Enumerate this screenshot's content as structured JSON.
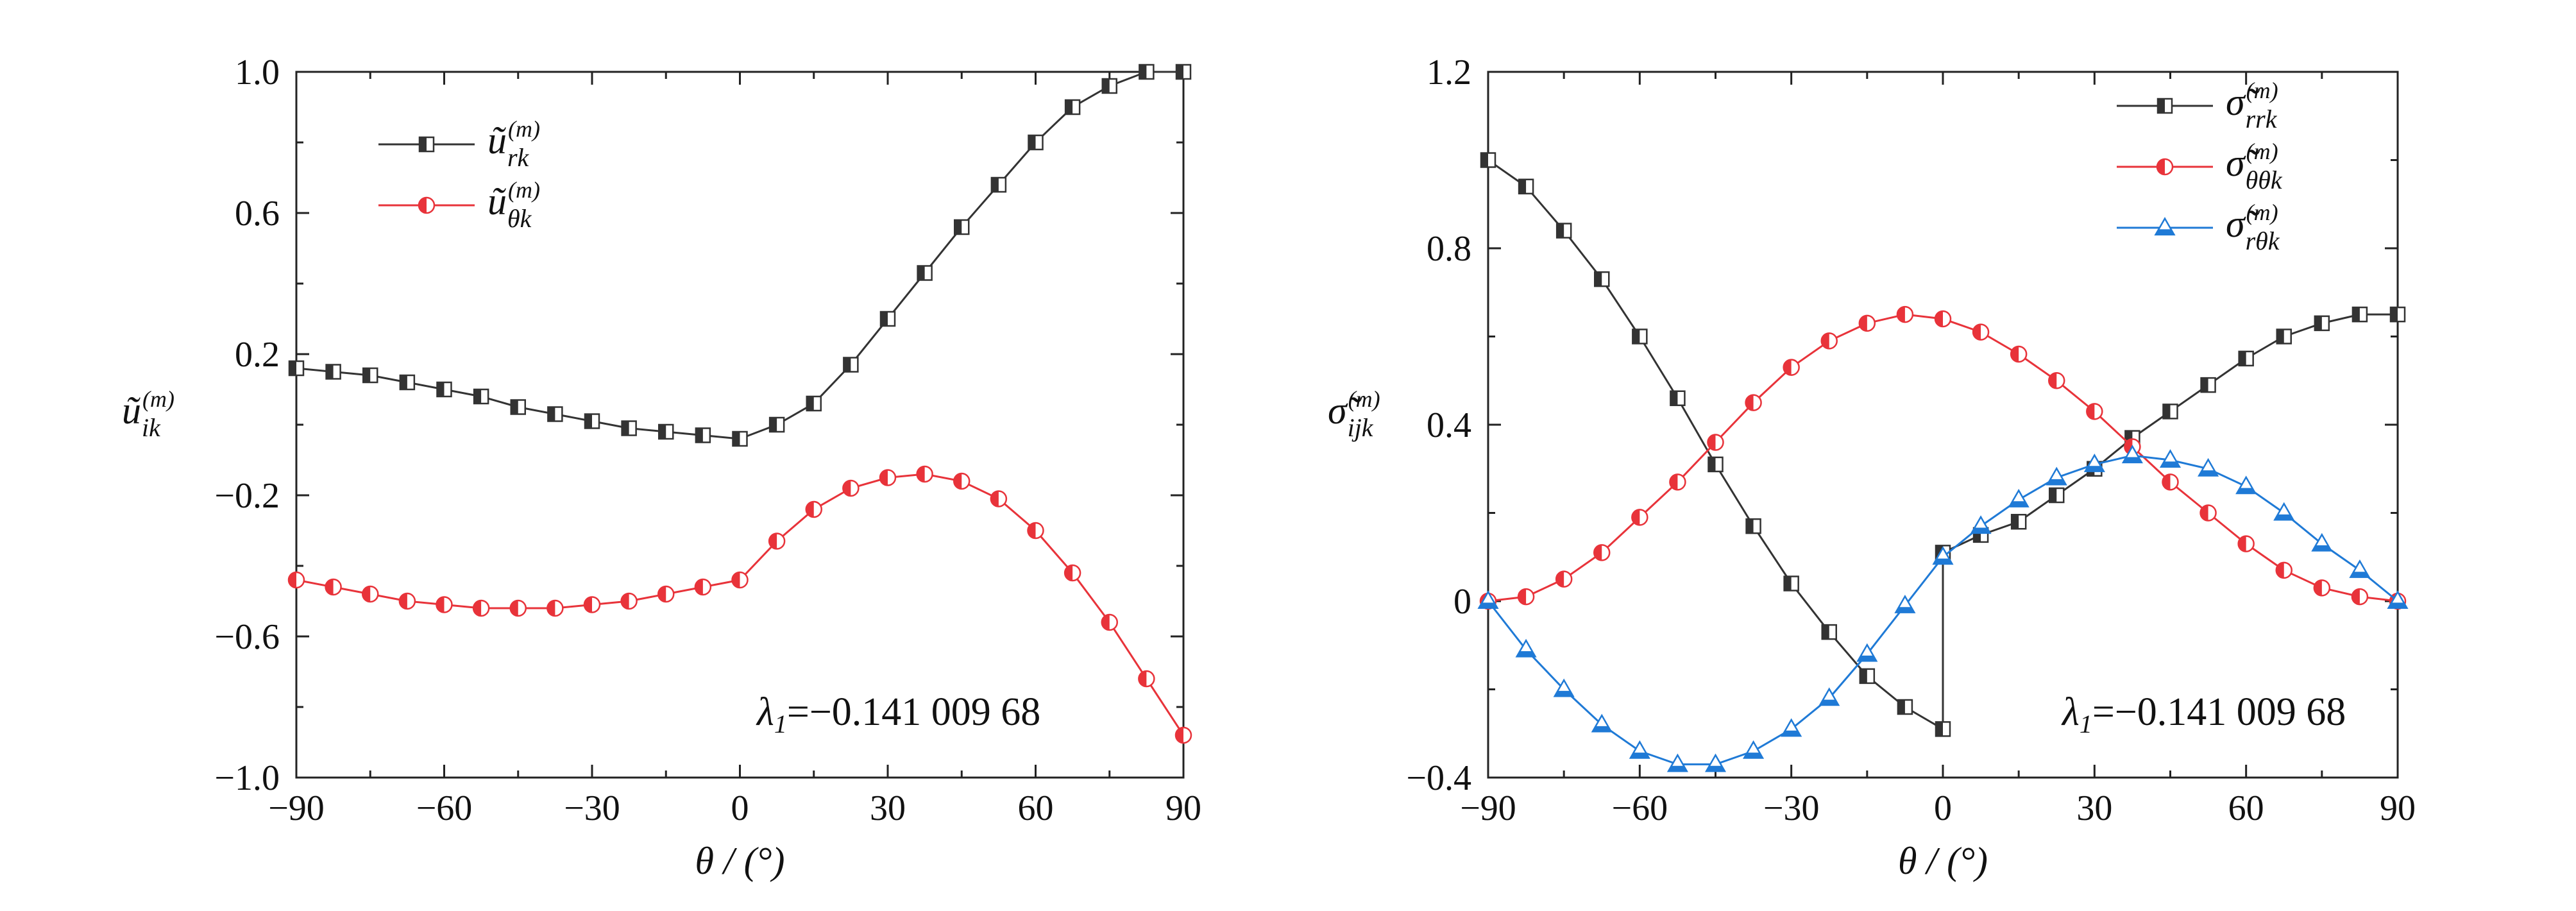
{
  "chart_data": [
    {
      "type": "line",
      "xlabel": "θ / (°)",
      "ylabel": "ũ_ik^(m)",
      "ylabel_parts": {
        "base": "ũ",
        "sub": "ik",
        "sup": "(m)"
      },
      "xlim": [
        -90,
        90
      ],
      "ylim": [
        -1.0,
        1.0
      ],
      "xticks": [
        -90,
        -60,
        -30,
        0,
        30,
        60,
        90
      ],
      "yticks": [
        -1.0,
        -0.6,
        -0.2,
        0.2,
        0.6,
        1.0
      ],
      "xtick_labels": [
        "−90",
        "−60",
        "−30",
        "0",
        "30",
        "60",
        "90"
      ],
      "ytick_labels": [
        "−1.0",
        "−0.6",
        "−0.2",
        "0.2",
        "0.6",
        "1.0"
      ],
      "annotation": "λ1=−0.141 009 68",
      "annotation_parts": {
        "lambda": "λ",
        "sub": "1",
        "rest": "=−0.141 009 68"
      },
      "legend_position": "top-left",
      "series": [
        {
          "name": "ũ_rk^(m)",
          "name_parts": {
            "base": "ũ",
            "sub": "rk",
            "sup": "(m)"
          },
          "color": "#333333",
          "marker": "square-half",
          "x": [
            -90,
            -82.5,
            -75,
            -67.5,
            -60,
            -52.5,
            -45,
            -37.5,
            -30,
            -22.5,
            -15,
            -7.5,
            0,
            7.5,
            15,
            22.5,
            30,
            37.5,
            45,
            52.5,
            60,
            67.5,
            75,
            82.5,
            90
          ],
          "values": [
            0.16,
            0.15,
            0.14,
            0.12,
            0.1,
            0.08,
            0.05,
            0.03,
            0.01,
            -0.01,
            -0.02,
            -0.03,
            -0.04,
            0.0,
            0.06,
            0.17,
            0.3,
            0.43,
            0.56,
            0.68,
            0.8,
            0.9,
            0.96,
            1.0,
            1.0
          ]
        },
        {
          "name": "ũ_θk^(m)",
          "name_parts": {
            "base": "ũ",
            "sub": "θk",
            "sup": "(m)"
          },
          "color": "#e8333a",
          "marker": "circle-half",
          "x": [
            -90,
            -82.5,
            -75,
            -67.5,
            -60,
            -52.5,
            -45,
            -37.5,
            -30,
            -22.5,
            -15,
            -7.5,
            0,
            7.5,
            15,
            22.5,
            30,
            37.5,
            45,
            52.5,
            60,
            67.5,
            75,
            82.5,
            90
          ],
          "values": [
            -0.44,
            -0.46,
            -0.48,
            -0.5,
            -0.51,
            -0.52,
            -0.52,
            -0.52,
            -0.51,
            -0.5,
            -0.48,
            -0.46,
            -0.44,
            -0.33,
            -0.24,
            -0.18,
            -0.15,
            -0.14,
            -0.16,
            -0.21,
            -0.3,
            -0.42,
            -0.56,
            -0.72,
            -0.88
          ]
        }
      ]
    },
    {
      "type": "line",
      "xlabel": "θ / (°)",
      "ylabel": "σ̃_ijk^(m)",
      "ylabel_parts": {
        "base": "σ̃",
        "sub": "ijk",
        "sup": "(m)"
      },
      "xlim": [
        -90,
        90
      ],
      "ylim": [
        -0.4,
        1.2
      ],
      "xticks": [
        -90,
        -60,
        -30,
        0,
        30,
        60,
        90
      ],
      "yticks": [
        -0.4,
        0,
        0.4,
        0.8,
        1.2
      ],
      "xtick_labels": [
        "−90",
        "−60",
        "−30",
        "0",
        "30",
        "60",
        "90"
      ],
      "ytick_labels": [
        "−0.4",
        "0",
        "0.4",
        "0.8",
        "1.2"
      ],
      "annotation": "λ1=−0.141 009 68",
      "annotation_parts": {
        "lambda": "λ",
        "sub": "1",
        "rest": "=−0.141 009 68"
      },
      "legend_position": "top-right",
      "series": [
        {
          "name": "σ̃_rrk^(m)",
          "name_parts": {
            "base": "σ̃",
            "sub": "rrk",
            "sup": "(m)"
          },
          "color": "#333333",
          "marker": "square-half",
          "x": [
            -90,
            -82.5,
            -75,
            -67.5,
            -60,
            -52.5,
            -45,
            -37.5,
            -30,
            -22.5,
            -15,
            -7.5,
            0,
            0,
            7.5,
            15,
            22.5,
            30,
            37.5,
            45,
            52.5,
            60,
            67.5,
            75,
            82.5,
            90
          ],
          "values": [
            1.0,
            0.94,
            0.84,
            0.73,
            0.6,
            0.46,
            0.31,
            0.17,
            0.04,
            -0.07,
            -0.17,
            -0.24,
            -0.29,
            0.11,
            0.15,
            0.18,
            0.24,
            0.3,
            0.37,
            0.43,
            0.49,
            0.55,
            0.6,
            0.63,
            0.65,
            0.65
          ]
        },
        {
          "name": "σ̃_θθk^(m)",
          "name_parts": {
            "base": "σ̃",
            "sub": "θθk",
            "sup": "(m)"
          },
          "color": "#e8333a",
          "marker": "circle-half",
          "x": [
            -90,
            -82.5,
            -75,
            -67.5,
            -60,
            -52.5,
            -45,
            -37.5,
            -30,
            -22.5,
            -15,
            -7.5,
            0,
            7.5,
            15,
            22.5,
            30,
            37.5,
            45,
            52.5,
            60,
            67.5,
            75,
            82.5,
            90
          ],
          "values": [
            0.0,
            0.01,
            0.05,
            0.11,
            0.19,
            0.27,
            0.36,
            0.45,
            0.53,
            0.59,
            0.63,
            0.65,
            0.64,
            0.61,
            0.56,
            0.5,
            0.43,
            0.35,
            0.27,
            0.2,
            0.13,
            0.07,
            0.03,
            0.01,
            0.0
          ]
        },
        {
          "name": "σ̃_rθk^(m)",
          "name_parts": {
            "base": "σ̃",
            "sub": "rθk",
            "sup": "(m)"
          },
          "color": "#1f7ad6",
          "marker": "triangle-half",
          "x": [
            -90,
            -82.5,
            -75,
            -67.5,
            -60,
            -52.5,
            -45,
            -37.5,
            -30,
            -22.5,
            -15,
            -7.5,
            0,
            7.5,
            15,
            22.5,
            30,
            37.5,
            45,
            52.5,
            60,
            67.5,
            75,
            82.5,
            90
          ],
          "values": [
            0.0,
            -0.11,
            -0.2,
            -0.28,
            -0.34,
            -0.37,
            -0.37,
            -0.34,
            -0.29,
            -0.22,
            -0.12,
            -0.01,
            0.1,
            0.17,
            0.23,
            0.28,
            0.31,
            0.33,
            0.32,
            0.3,
            0.26,
            0.2,
            0.13,
            0.07,
            0.0
          ]
        }
      ]
    }
  ]
}
